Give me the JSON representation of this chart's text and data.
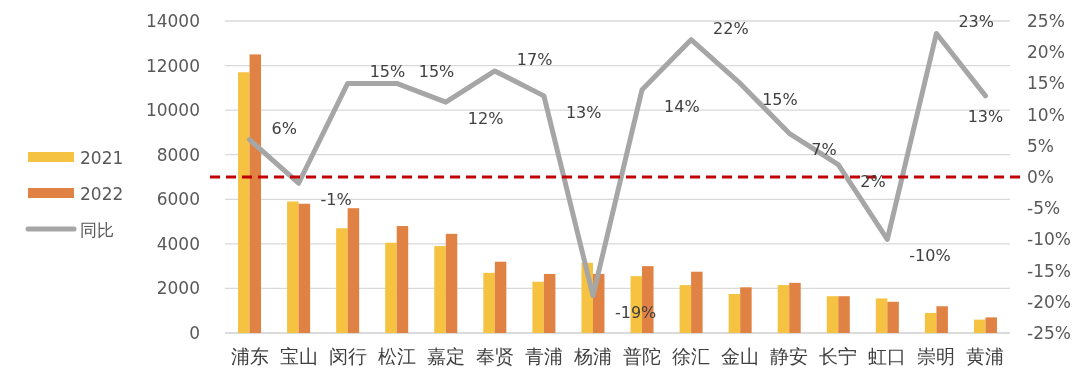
{
  "chart_data": {
    "type": "bar",
    "categories": [
      "浦东",
      "宝山",
      "闵行",
      "松江",
      "嘉定",
      "奉贤",
      "青浦",
      "杨浦",
      "普陀",
      "徐汇",
      "金山",
      "静安",
      "长宁",
      "虹口",
      "崇明",
      "黄浦"
    ],
    "series": [
      {
        "name": "2021",
        "color": "#f5c242",
        "values": [
          11700,
          5900,
          4700,
          4050,
          3900,
          2700,
          2300,
          3150,
          2550,
          2150,
          1750,
          2150,
          1650,
          1550,
          900,
          600
        ]
      },
      {
        "name": "2022",
        "color": "#e08244",
        "values": [
          12500,
          5800,
          5600,
          4800,
          4450,
          3200,
          2650,
          2650,
          3000,
          2750,
          2050,
          2250,
          1650,
          1400,
          1200,
          700
        ]
      },
      {
        "name": "同比",
        "type": "line",
        "axis": "y2",
        "color": "#a6a6a6",
        "data_labels": true,
        "value_labels": [
          "6%",
          "-1%",
          "15%",
          "15%",
          "12%",
          "17%",
          "13%",
          "-19%",
          "14%",
          "22%",
          "15%",
          "7%",
          "2%",
          "-10%",
          "23%",
          "13%"
        ],
        "values": [
          6,
          -1,
          15,
          15,
          12,
          17,
          13,
          -19,
          14,
          22,
          15,
          7,
          2,
          -10,
          23,
          13
        ]
      }
    ],
    "ylim": [
      0,
      14000
    ],
    "yticks": [
      0,
      2000,
      4000,
      6000,
      8000,
      10000,
      12000,
      14000
    ],
    "y2lim": [
      -25,
      25
    ],
    "y2ticks": [
      {
        "value": -25,
        "label": "-25%"
      },
      {
        "value": -20,
        "label": "-20%"
      },
      {
        "value": -15,
        "label": "-15%"
      },
      {
        "value": -10,
        "label": "-10%"
      },
      {
        "value": -5,
        "label": "-5%"
      },
      {
        "value": 0,
        "label": "0%"
      },
      {
        "value": 5,
        "label": "5%"
      },
      {
        "value": 10,
        "label": "10%"
      },
      {
        "value": 15,
        "label": "15%"
      },
      {
        "value": 20,
        "label": "20%"
      },
      {
        "value": 25,
        "label": "25%"
      }
    ],
    "ref_lines": [
      {
        "axis": "y2",
        "value": 0,
        "color": "#c00000",
        "line_style": "dashed"
      }
    ],
    "grid": "y",
    "legend": "left",
    "marker": "none",
    "line_style": "solid"
  }
}
